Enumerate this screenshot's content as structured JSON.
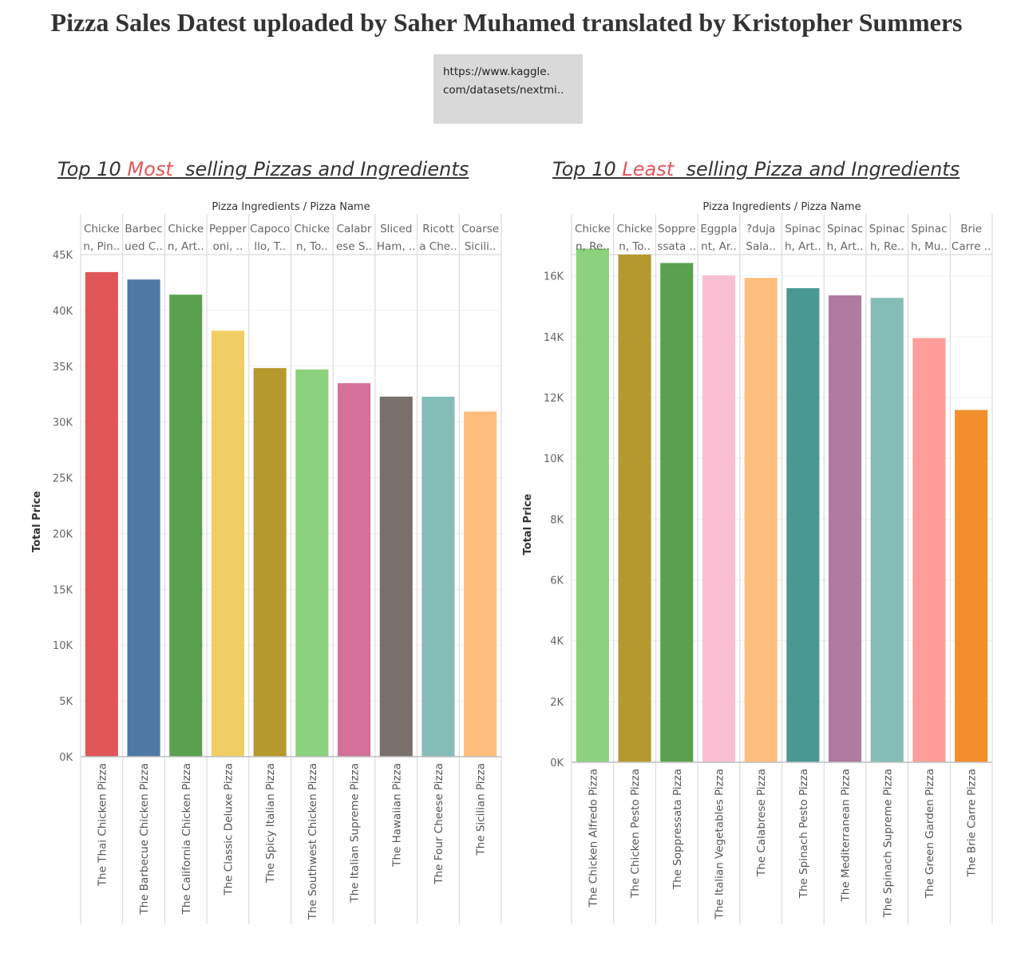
{
  "title": "Pizza Sales Datest uploaded by Saher Muhamed translated by Kristopher Summers",
  "url_lines": [
    "https://www.kaggle.",
    "com/datasets/nextmi.."
  ],
  "chart_data": [
    {
      "type": "bar",
      "title_parts": [
        "Top 10 ",
        "Most",
        "  selling Pizzas and Ingredients"
      ],
      "header_label": "Pizza Ingredients  /  Pizza Name",
      "ylabel": "Total Price",
      "ylim": [
        0,
        45000
      ],
      "yticks": [
        0,
        5000,
        10000,
        15000,
        20000,
        25000,
        30000,
        35000,
        40000,
        45000
      ],
      "ytick_labels": [
        "0K",
        "5K",
        "10K",
        "15K",
        "20K",
        "25K",
        "30K",
        "35K",
        "40K",
        "45K"
      ],
      "ingredients": [
        [
          "Chicke",
          "n, Pin.."
        ],
        [
          "Barbec",
          "ued C.."
        ],
        [
          "Chicke",
          "n, Art.."
        ],
        [
          "Pepper",
          "oni, .."
        ],
        [
          "Capoco",
          "llo, T.."
        ],
        [
          "Chicke",
          "n, To.."
        ],
        [
          "Calabr",
          "ese S.."
        ],
        [
          "Sliced",
          "Ham, .."
        ],
        [
          "Ricott",
          "a Che.."
        ],
        [
          "Coarse",
          "Sicili.."
        ]
      ],
      "categories": [
        "The Thai Chicken Pizza",
        "The Barbecue Chicken Pizza",
        "The California Chicken Pizza",
        "The Classic Deluxe Pizza",
        "The Spicy Italian Pizza",
        "The Southwest Chicken Pizza",
        "The Italian Supreme Pizza",
        "The Hawaiian Pizza",
        "The Four Cheese Pizza",
        "The Sicilian Pizza"
      ],
      "values": [
        43434,
        42768,
        41410,
        38180,
        34831,
        34706,
        33477,
        32273,
        32265,
        30940
      ],
      "colors": [
        "#e15759",
        "#4e79a7",
        "#59a14f",
        "#f1ce63",
        "#b6992d",
        "#8cd17d",
        "#d4709a",
        "#79706e",
        "#86bcb6",
        "#ffbe7d"
      ]
    },
    {
      "type": "bar",
      "title_parts": [
        "Top 10 ",
        "Least",
        "  selling Pizza and Ingredients"
      ],
      "header_label": "Pizza Ingredients  /  Pizza Name",
      "ylabel": "Total Price",
      "ylim": [
        0,
        16700
      ],
      "yticks": [
        0,
        2000,
        4000,
        6000,
        8000,
        10000,
        12000,
        14000,
        16000
      ],
      "ytick_labels": [
        "0K",
        "2K",
        "4K",
        "6K",
        "8K",
        "10K",
        "12K",
        "14K",
        "16K"
      ],
      "ingredients": [
        [
          "Chicke",
          "n, Re.."
        ],
        [
          "Chicke",
          "n, To.."
        ],
        [
          "Soppre",
          "ssata .."
        ],
        [
          "Eggpla",
          "nt, Ar.."
        ],
        [
          "?duja",
          "Sala.."
        ],
        [
          "Spinac",
          "h, Art.."
        ],
        [
          "Spinac",
          "h, Art.."
        ],
        [
          "Spinac",
          "h, Re.."
        ],
        [
          "Spinac",
          "h, Mu.."
        ],
        [
          "Brie",
          "Carre .."
        ]
      ],
      "categories": [
        "The Chicken Alfredo Pizza",
        "The Chicken Pesto Pizza",
        "The Soppressata Pizza",
        "The Italian Vegetables Pizza",
        "The Calabrese Pizza",
        "The Spinach Pesto Pizza",
        "The Mediterranean Pizza",
        "The Spinach Supreme Pizza",
        "The Green Garden Pizza",
        "The Brie Carre Pizza"
      ],
      "values": [
        16900,
        16702,
        16425,
        16019,
        15934,
        15596,
        15360,
        15277,
        13956,
        11588
      ],
      "colors": [
        "#8cd17d",
        "#b6992d",
        "#59a14f",
        "#fabfd2",
        "#ffbe7d",
        "#499894",
        "#b07aa1",
        "#86bcb6",
        "#ff9d9a",
        "#f28e2b"
      ]
    }
  ]
}
